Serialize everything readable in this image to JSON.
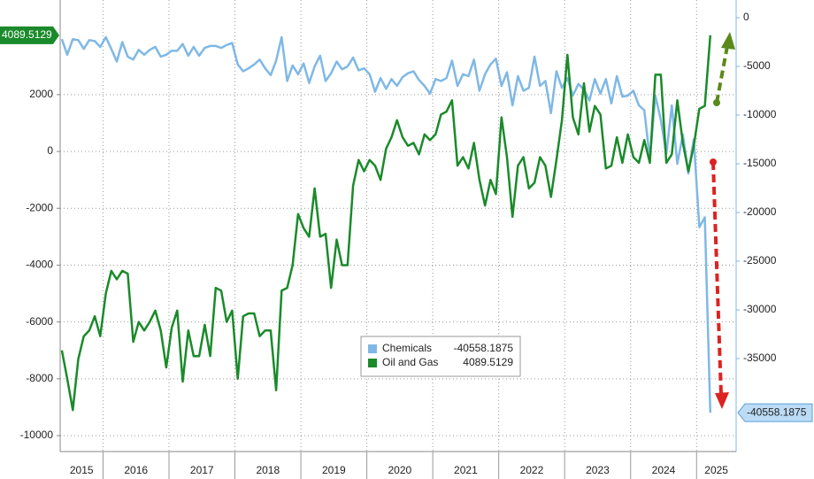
{
  "chart_data": {
    "type": "line",
    "x": [
      2015.375,
      2015.458,
      2015.542,
      2015.625,
      2015.708,
      2015.792,
      2015.875,
      2015.958,
      2016.042,
      2016.125,
      2016.208,
      2016.292,
      2016.375,
      2016.458,
      2016.542,
      2016.625,
      2016.708,
      2016.792,
      2016.875,
      2016.958,
      2017.042,
      2017.125,
      2017.208,
      2017.292,
      2017.375,
      2017.458,
      2017.542,
      2017.625,
      2017.708,
      2017.792,
      2017.875,
      2017.958,
      2018.042,
      2018.125,
      2018.208,
      2018.292,
      2018.375,
      2018.458,
      2018.542,
      2018.625,
      2018.708,
      2018.792,
      2018.875,
      2018.958,
      2019.042,
      2019.125,
      2019.208,
      2019.292,
      2019.375,
      2019.458,
      2019.542,
      2019.625,
      2019.708,
      2019.792,
      2019.875,
      2019.958,
      2020.042,
      2020.125,
      2020.208,
      2020.292,
      2020.375,
      2020.458,
      2020.542,
      2020.625,
      2020.708,
      2020.792,
      2020.875,
      2020.958,
      2021.042,
      2021.125,
      2021.208,
      2021.292,
      2021.375,
      2021.458,
      2021.542,
      2021.625,
      2021.708,
      2021.792,
      2021.875,
      2021.958,
      2022.042,
      2022.125,
      2022.208,
      2022.292,
      2022.375,
      2022.458,
      2022.542,
      2022.625,
      2022.708,
      2022.792,
      2022.875,
      2022.958,
      2023.042,
      2023.125,
      2023.208,
      2023.292,
      2023.375,
      2023.458,
      2023.542,
      2023.625,
      2023.708,
      2023.792,
      2023.875,
      2023.958,
      2024.042,
      2024.125,
      2024.208,
      2024.292,
      2024.375,
      2024.458,
      2024.542,
      2024.625,
      2024.708,
      2024.792,
      2024.875,
      2024.958,
      2025.042,
      2025.125,
      2025.208
    ],
    "series": [
      {
        "name": "Chemicals",
        "color": "#7fb8e6",
        "axis": "y2",
        "values": [
          -2200,
          -3800,
          -2200,
          -2300,
          -3200,
          -2300,
          -2400,
          -3000,
          -2000,
          -3200,
          -4500,
          -2500,
          -4000,
          -4300,
          -3300,
          -3800,
          -3300,
          -3000,
          -4000,
          -3800,
          -3400,
          -3400,
          -2700,
          -3900,
          -3000,
          -3900,
          -3100,
          -2900,
          -2900,
          -3100,
          -2800,
          -2600,
          -4800,
          -5500,
          -5200,
          -4800,
          -4300,
          -5200,
          -5900,
          -4400,
          -2000,
          -6500,
          -4900,
          -5800,
          -4700,
          -6700,
          -5000,
          -3900,
          -6500,
          -5700,
          -4500,
          -5300,
          -5000,
          -4100,
          -5400,
          -5200,
          -5800,
          -7600,
          -6200,
          -7300,
          -6300,
          -7000,
          -6100,
          -5700,
          -5500,
          -6400,
          -7000,
          -7800,
          -6300,
          -6500,
          -6200,
          -4400,
          -7000,
          -5800,
          -6000,
          -4300,
          -7500,
          -5800,
          -4800,
          -4200,
          -7000,
          -5600,
          -9000,
          -6000,
          -7500,
          -7200,
          -4000,
          -7000,
          -6500,
          -9800,
          -5500,
          -7200,
          -6200,
          -8000,
          -6800,
          -7400,
          -8500,
          -6300,
          -7800,
          -6300,
          -8800,
          -6000,
          -8100,
          -8000,
          -7500,
          -9000,
          -9500,
          -14500,
          -8000,
          -10500,
          -14000,
          -9000,
          -15000,
          -12000,
          -16000,
          -12500,
          -21500,
          -20500,
          -40558.1875
        ]
      },
      {
        "name": "Oil and Gas",
        "color": "#1a8a2a",
        "values": [
          -7000,
          -8000,
          -9100,
          -7300,
          -6500,
          -6300,
          -5800,
          -6500,
          -5000,
          -4200,
          -4500,
          -4200,
          -4300,
          -6700,
          -6000,
          -6300,
          -6000,
          -5600,
          -6300,
          -7600,
          -6200,
          -5600,
          -8100,
          -6300,
          -7200,
          -7200,
          -6100,
          -7200,
          -4800,
          -4900,
          -6000,
          -5600,
          -8000,
          -5800,
          -5700,
          -5700,
          -6500,
          -6300,
          -6300,
          -8400,
          -4900,
          -4800,
          -4000,
          -2200,
          -2700,
          -3000,
          -1300,
          -3000,
          -2900,
          -4800,
          -3100,
          -4000,
          -4000,
          -1200,
          -300,
          -700,
          -300,
          -500,
          -1000,
          100,
          500,
          1100,
          500,
          200,
          300,
          -100,
          600,
          400,
          600,
          1300,
          1400,
          1800,
          -500,
          -200,
          -600,
          300,
          -1000,
          -1900,
          -1000,
          -1500,
          1200,
          -200,
          -2300,
          -500,
          -200,
          -1300,
          -1100,
          -200,
          -500,
          -1600,
          -300,
          1100,
          3400,
          1200,
          600,
          2400,
          700,
          1600,
          1300,
          -600,
          -500,
          500,
          -400,
          600,
          -200,
          -400,
          400,
          -400,
          2700,
          2700,
          -400,
          -100,
          1800,
          300,
          -700,
          200,
          1500,
          1600,
          4089.5129
        ]
      }
    ],
    "xlim": [
      2015.35,
      2025.6
    ],
    "xticks": [
      {
        "value": 2015,
        "label": "2015"
      },
      {
        "value": 2016,
        "label": "2016"
      },
      {
        "value": 2017,
        "label": "2017"
      },
      {
        "value": 2018,
        "label": "2018"
      },
      {
        "value": 2019,
        "label": "2019"
      },
      {
        "value": 2020,
        "label": "2020"
      },
      {
        "value": 2021,
        "label": "2021"
      },
      {
        "value": 2022,
        "label": "2022"
      },
      {
        "value": 2023,
        "label": "2023"
      },
      {
        "value": 2024,
        "label": "2024"
      },
      {
        "value": 2025,
        "label": "2025"
      }
    ],
    "ylim": [
      -10560,
      5330
    ],
    "yticks": [
      2000,
      0,
      -2000,
      -4000,
      -6000,
      -8000,
      -10000
    ],
    "y2lim": [
      -44545,
      1818
    ],
    "y2ticks": [
      0,
      -5000,
      -10000,
      -15000,
      -20000,
      -25000,
      -30000,
      -35000
    ],
    "grid": true,
    "legend": "bottom-center"
  }
}
